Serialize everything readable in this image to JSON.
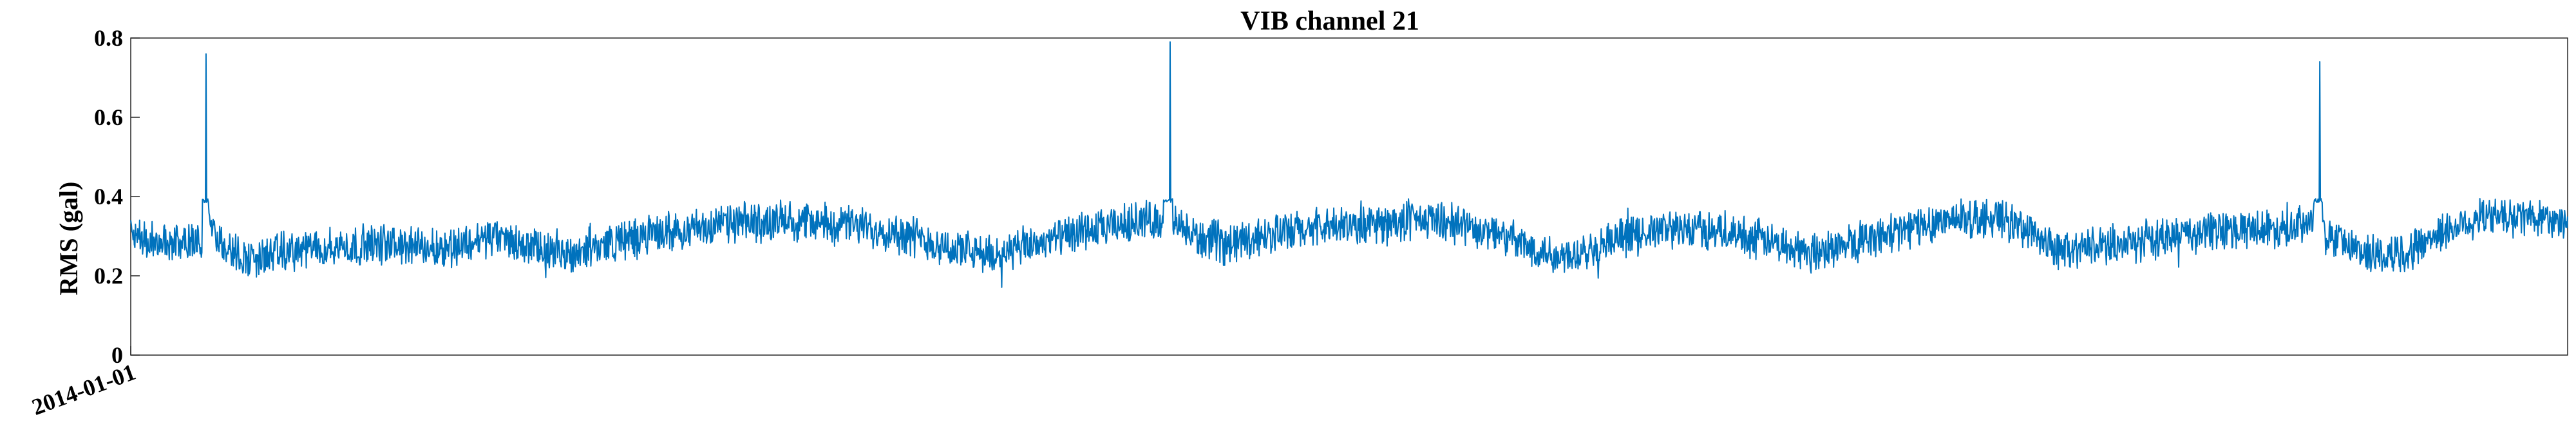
{
  "chart_data": {
    "type": "line",
    "title": "VIB channel 21",
    "xlabel": "",
    "ylabel": "RMS (gal)",
    "ylim": [
      0,
      0.8
    ],
    "yticks": [
      0,
      0.2,
      0.4,
      0.6,
      0.8
    ],
    "xtick_labels": [
      "2014-01-01"
    ],
    "grid": false,
    "line_color": "#0072BD",
    "series": [
      {
        "y_anchors": [
          [
            0,
            0.3
          ],
          [
            40,
            0.29
          ],
          [
            100,
            0.28
          ],
          [
            120,
            0.3
          ],
          [
            127,
            0.76
          ],
          [
            132,
            0.32
          ],
          [
            160,
            0.27
          ],
          [
            200,
            0.24
          ],
          [
            260,
            0.26
          ],
          [
            320,
            0.27
          ],
          [
            420,
            0.28
          ],
          [
            520,
            0.27
          ],
          [
            560,
            0.28
          ],
          [
            610,
            0.3
          ],
          [
            680,
            0.27
          ],
          [
            720,
            0.25
          ],
          [
            800,
            0.28
          ],
          [
            900,
            0.31
          ],
          [
            1000,
            0.33
          ],
          [
            1100,
            0.34
          ],
          [
            1200,
            0.33
          ],
          [
            1300,
            0.31
          ],
          [
            1380,
            0.27
          ],
          [
            1450,
            0.25
          ],
          [
            1550,
            0.29
          ],
          [
            1650,
            0.32
          ],
          [
            1700,
            0.34
          ],
          [
            1740,
            0.34
          ],
          [
            1753,
            0.79
          ],
          [
            1758,
            0.33
          ],
          [
            1790,
            0.3
          ],
          [
            1850,
            0.28
          ],
          [
            1900,
            0.3
          ],
          [
            2000,
            0.32
          ],
          [
            2100,
            0.33
          ],
          [
            2200,
            0.34
          ],
          [
            2300,
            0.31
          ],
          [
            2360,
            0.27
          ],
          [
            2420,
            0.25
          ],
          [
            2500,
            0.29
          ],
          [
            2600,
            0.32
          ],
          [
            2700,
            0.31
          ],
          [
            2780,
            0.28
          ],
          [
            2830,
            0.26
          ],
          [
            2900,
            0.28
          ],
          [
            3000,
            0.32
          ],
          [
            3050,
            0.34
          ],
          [
            3150,
            0.35
          ],
          [
            3220,
            0.3
          ],
          [
            3250,
            0.26
          ],
          [
            3300,
            0.27
          ],
          [
            3400,
            0.29
          ],
          [
            3500,
            0.31
          ],
          [
            3600,
            0.32
          ],
          [
            3680,
            0.33
          ],
          [
            3692,
            0.74
          ],
          [
            3698,
            0.3
          ],
          [
            3750,
            0.27
          ],
          [
            3800,
            0.25
          ],
          [
            3850,
            0.27
          ],
          [
            3880,
            0.3
          ],
          [
            3950,
            0.34
          ],
          [
            4000,
            0.35
          ],
          [
            4050,
            0.35
          ],
          [
            4110,
            0.34
          ]
        ],
        "y_min_observed": 0.17,
        "y_max_observed": 0.79,
        "spikes": [
          0.76,
          0.79,
          0.74
        ]
      }
    ]
  }
}
